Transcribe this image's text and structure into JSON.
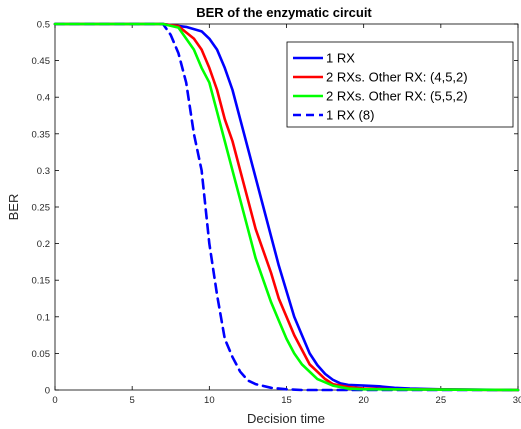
{
  "chart_data": {
    "type": "line",
    "title": "BER of the enzymatic circuit",
    "xlabel": "Decision time",
    "ylabel": "BER",
    "xlim": [
      0,
      30
    ],
    "ylim": [
      0,
      0.5
    ],
    "xticks": [
      "0",
      "5",
      "10",
      "15",
      "20",
      "25",
      "30"
    ],
    "yticks": [
      "0",
      "0.05",
      "0.1",
      "0.15",
      "0.2",
      "0.25",
      "0.3",
      "0.35",
      "0.4",
      "0.45",
      "0.5"
    ],
    "grid": false,
    "legend_position": "top-right",
    "series": [
      {
        "name": "1 RX",
        "color": "#0000ff",
        "style": "solid",
        "points": [
          [
            0,
            0.5
          ],
          [
            7,
            0.5
          ],
          [
            8.5,
            0.496
          ],
          [
            9.5,
            0.49
          ],
          [
            10,
            0.48
          ],
          [
            10.5,
            0.465
          ],
          [
            11,
            0.44
          ],
          [
            11.5,
            0.41
          ],
          [
            12,
            0.37
          ],
          [
            12.5,
            0.33
          ],
          [
            13,
            0.29
          ],
          [
            13.5,
            0.25
          ],
          [
            14,
            0.21
          ],
          [
            14.5,
            0.17
          ],
          [
            15,
            0.135
          ],
          [
            15.5,
            0.1
          ],
          [
            16,
            0.075
          ],
          [
            16.5,
            0.05
          ],
          [
            17,
            0.034
          ],
          [
            17.5,
            0.022
          ],
          [
            18,
            0.014
          ],
          [
            18.5,
            0.009
          ],
          [
            19,
            0.007
          ],
          [
            20,
            0.006
          ],
          [
            21,
            0.005
          ],
          [
            22,
            0.003
          ],
          [
            23,
            0.002
          ],
          [
            25,
            0.001
          ],
          [
            30,
            0
          ]
        ]
      },
      {
        "name": "2 RXs. Other RX: (4,5,2)",
        "color": "#ff0000",
        "style": "solid",
        "points": [
          [
            0,
            0.5
          ],
          [
            7,
            0.5
          ],
          [
            8,
            0.497
          ],
          [
            9,
            0.48
          ],
          [
            9.5,
            0.465
          ],
          [
            10,
            0.44
          ],
          [
            10.5,
            0.41
          ],
          [
            11,
            0.37
          ],
          [
            11.5,
            0.34
          ],
          [
            12,
            0.3
          ],
          [
            12.5,
            0.26
          ],
          [
            13,
            0.22
          ],
          [
            13.5,
            0.19
          ],
          [
            14,
            0.16
          ],
          [
            14.5,
            0.125
          ],
          [
            15,
            0.1
          ],
          [
            15.5,
            0.075
          ],
          [
            16,
            0.055
          ],
          [
            16.5,
            0.035
          ],
          [
            17,
            0.025
          ],
          [
            17.5,
            0.015
          ],
          [
            18,
            0.008
          ],
          [
            19,
            0.004
          ],
          [
            20,
            0.002
          ],
          [
            22,
            0.001
          ],
          [
            30,
            0
          ]
        ]
      },
      {
        "name": "2 RXs. Other RX: (5,5,2)",
        "color": "#00ff00",
        "style": "solid",
        "points": [
          [
            0,
            0.5
          ],
          [
            7,
            0.5
          ],
          [
            8,
            0.495
          ],
          [
            8.5,
            0.48
          ],
          [
            9,
            0.465
          ],
          [
            9.5,
            0.44
          ],
          [
            10,
            0.42
          ],
          [
            10.5,
            0.38
          ],
          [
            11,
            0.34
          ],
          [
            11.5,
            0.3
          ],
          [
            12,
            0.26
          ],
          [
            12.5,
            0.22
          ],
          [
            13,
            0.18
          ],
          [
            13.5,
            0.15
          ],
          [
            14,
            0.12
          ],
          [
            14.5,
            0.095
          ],
          [
            15,
            0.07
          ],
          [
            15.5,
            0.05
          ],
          [
            16,
            0.035
          ],
          [
            17,
            0.015
          ],
          [
            18,
            0.006
          ],
          [
            19,
            0.002
          ],
          [
            20,
            0.001
          ],
          [
            30,
            0
          ]
        ]
      },
      {
        "name": "1 RX (8)",
        "color": "#0000ff",
        "style": "dashed",
        "points": [
          [
            0,
            0.5
          ],
          [
            7,
            0.5
          ],
          [
            7.5,
            0.485
          ],
          [
            8,
            0.46
          ],
          [
            8.5,
            0.42
          ],
          [
            9,
            0.35
          ],
          [
            9.5,
            0.3
          ],
          [
            10,
            0.2
          ],
          [
            10.5,
            0.13
          ],
          [
            11,
            0.07
          ],
          [
            11.5,
            0.045
          ],
          [
            12,
            0.025
          ],
          [
            12.5,
            0.013
          ],
          [
            13,
            0.008
          ],
          [
            14,
            0.003
          ],
          [
            15,
            0.001
          ],
          [
            16,
            0
          ],
          [
            30,
            0
          ]
        ]
      }
    ]
  }
}
